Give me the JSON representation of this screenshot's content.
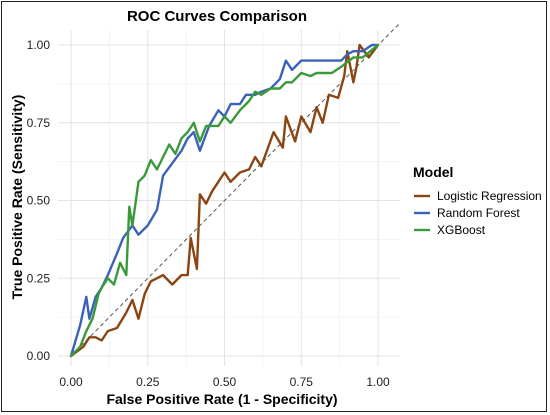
{
  "chart_data": {
    "type": "line",
    "title": "ROC Curves Comparison",
    "xlabel": "False Positive Rate (1 - Specificity)",
    "ylabel": "True Positive Rate (Sensitivity)",
    "xlim": [
      0,
      1
    ],
    "ylim": [
      0,
      1
    ],
    "x_ticks": [
      "0.00",
      "0.25",
      "0.50",
      "0.75",
      "1.00"
    ],
    "y_ticks": [
      "0.00",
      "0.25",
      "0.50",
      "0.75",
      "1.00"
    ],
    "grid": true,
    "legend_title": "Model",
    "legend_position": "right",
    "reference_line": {
      "x": [
        0,
        1
      ],
      "y": [
        0,
        1
      ],
      "style": "dashed"
    },
    "series": [
      {
        "name": "Logistic Regression",
        "color": "#8B4513",
        "x": [
          0.0,
          0.04,
          0.06,
          0.08,
          0.1,
          0.12,
          0.15,
          0.18,
          0.2,
          0.22,
          0.24,
          0.26,
          0.3,
          0.33,
          0.36,
          0.38,
          0.39,
          0.41,
          0.42,
          0.44,
          0.46,
          0.48,
          0.5,
          0.52,
          0.55,
          0.58,
          0.6,
          0.62,
          0.66,
          0.69,
          0.7,
          0.73,
          0.75,
          0.78,
          0.8,
          0.82,
          0.84,
          0.87,
          0.89,
          0.9,
          0.92,
          0.93,
          0.94,
          0.97,
          1.0
        ],
        "y": [
          0.0,
          0.03,
          0.06,
          0.06,
          0.05,
          0.08,
          0.09,
          0.14,
          0.18,
          0.12,
          0.2,
          0.24,
          0.26,
          0.23,
          0.26,
          0.26,
          0.38,
          0.28,
          0.52,
          0.49,
          0.53,
          0.56,
          0.59,
          0.56,
          0.59,
          0.6,
          0.64,
          0.61,
          0.72,
          0.67,
          0.77,
          0.69,
          0.77,
          0.72,
          0.8,
          0.75,
          0.84,
          0.83,
          0.9,
          0.98,
          0.88,
          0.93,
          1.0,
          0.96,
          1.0
        ]
      },
      {
        "name": "Random Forest",
        "color": "#3A63B8",
        "x": [
          0.0,
          0.03,
          0.05,
          0.06,
          0.08,
          0.1,
          0.12,
          0.15,
          0.17,
          0.2,
          0.22,
          0.25,
          0.28,
          0.3,
          0.33,
          0.36,
          0.38,
          0.4,
          0.42,
          0.45,
          0.48,
          0.5,
          0.52,
          0.55,
          0.57,
          0.6,
          0.62,
          0.65,
          0.68,
          0.7,
          0.72,
          0.75,
          0.8,
          0.85,
          0.88,
          0.9,
          0.92,
          0.95,
          0.98,
          1.0
        ],
        "y": [
          0.0,
          0.1,
          0.19,
          0.12,
          0.19,
          0.22,
          0.26,
          0.33,
          0.38,
          0.42,
          0.39,
          0.42,
          0.47,
          0.58,
          0.62,
          0.66,
          0.7,
          0.72,
          0.66,
          0.74,
          0.79,
          0.77,
          0.81,
          0.81,
          0.84,
          0.84,
          0.85,
          0.86,
          0.89,
          0.95,
          0.92,
          0.95,
          0.95,
          0.95,
          0.95,
          0.97,
          0.98,
          0.98,
          1.0,
          1.0
        ]
      },
      {
        "name": "XGBoost",
        "color": "#3A9A3A",
        "x": [
          0.0,
          0.03,
          0.05,
          0.07,
          0.09,
          0.1,
          0.12,
          0.14,
          0.16,
          0.18,
          0.19,
          0.2,
          0.22,
          0.24,
          0.26,
          0.28,
          0.3,
          0.32,
          0.34,
          0.36,
          0.38,
          0.4,
          0.42,
          0.44,
          0.46,
          0.48,
          0.5,
          0.52,
          0.55,
          0.58,
          0.6,
          0.62,
          0.65,
          0.68,
          0.7,
          0.72,
          0.75,
          0.78,
          0.8,
          0.82,
          0.85,
          0.88,
          0.92,
          0.95,
          1.0
        ],
        "y": [
          0.0,
          0.03,
          0.08,
          0.12,
          0.2,
          0.22,
          0.25,
          0.23,
          0.3,
          0.26,
          0.48,
          0.42,
          0.56,
          0.58,
          0.63,
          0.6,
          0.64,
          0.68,
          0.65,
          0.7,
          0.72,
          0.75,
          0.69,
          0.74,
          0.74,
          0.74,
          0.77,
          0.75,
          0.79,
          0.82,
          0.85,
          0.84,
          0.86,
          0.86,
          0.88,
          0.88,
          0.91,
          0.9,
          0.91,
          0.91,
          0.91,
          0.93,
          0.96,
          0.96,
          1.0
        ]
      }
    ]
  }
}
